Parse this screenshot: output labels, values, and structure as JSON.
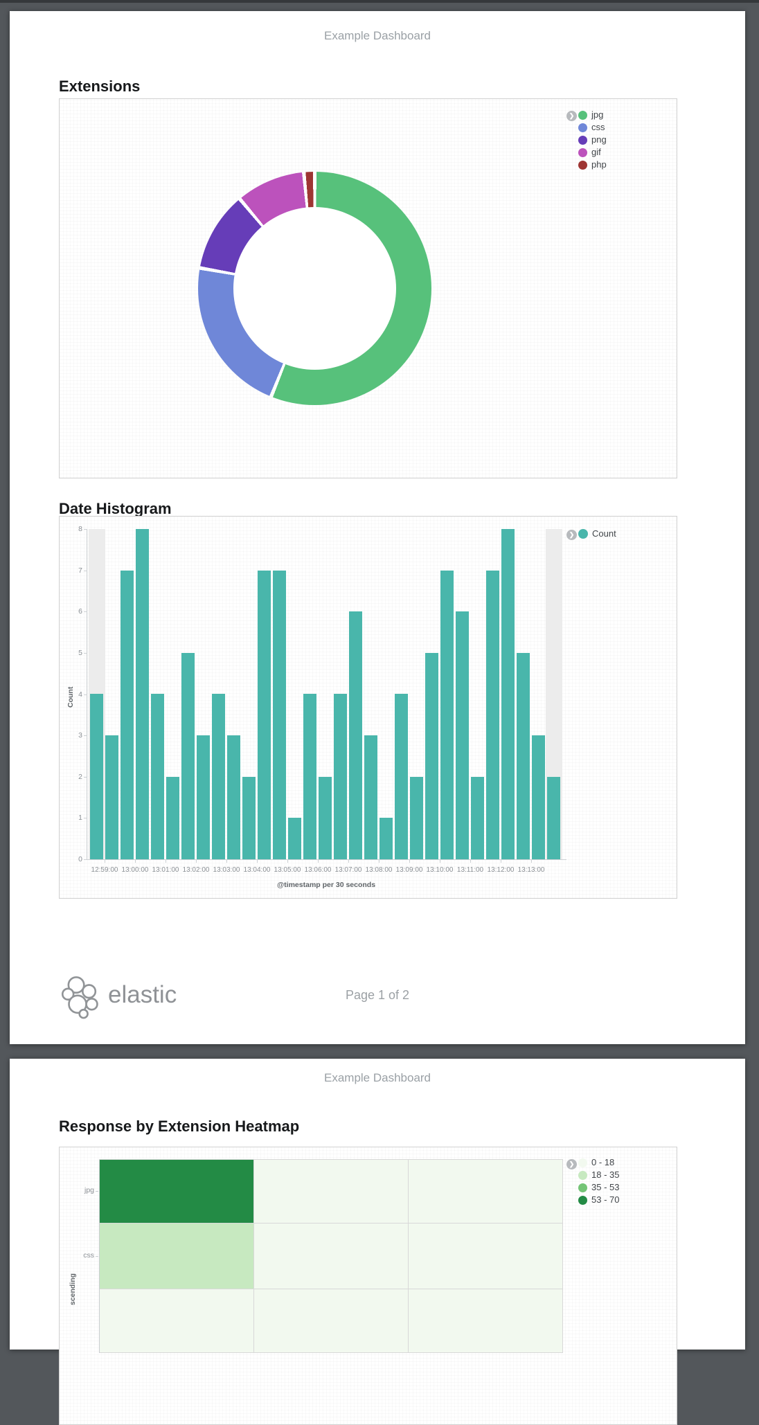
{
  "report": {
    "header_title": "Example Dashboard",
    "footer": {
      "brand": "elastic",
      "page_label": "Page 1 of 2"
    }
  },
  "sections": {
    "extensions": {
      "title": "Extensions"
    },
    "date_histogram": {
      "title": "Date Histogram"
    },
    "heatmap": {
      "title": "Response by Extension Heatmap"
    }
  },
  "chart_data": [
    {
      "type": "pie",
      "title": "Extensions",
      "donut": true,
      "legend_position": "top-right",
      "slices": [
        {
          "label": "jpg",
          "pct": 56.1,
          "color": "#57c17b"
        },
        {
          "label": "css",
          "pct": 21.7,
          "color": "#6f87d8"
        },
        {
          "label": "png",
          "pct": 11.1,
          "color": "#663db8"
        },
        {
          "label": "gif",
          "pct": 9.6,
          "color": "#bc52bc"
        },
        {
          "label": "php",
          "pct": 1.5,
          "color": "#9e3533"
        }
      ]
    },
    {
      "type": "bar",
      "title": "Date Histogram",
      "series_name": "Count",
      "color": "#49b6ab",
      "xlabel": "@timestamp per 30 seconds",
      "ylabel": "Count",
      "ylim": [
        0,
        8
      ],
      "x": [
        "12:58:30",
        "12:59:00",
        "12:59:30",
        "13:00:00",
        "13:00:30",
        "13:01:00",
        "13:01:30",
        "13:02:00",
        "13:02:30",
        "13:03:00",
        "13:03:30",
        "13:04:00",
        "13:04:30",
        "13:05:00",
        "13:05:30",
        "13:06:00",
        "13:06:30",
        "13:07:00",
        "13:07:30",
        "13:08:00",
        "13:08:30",
        "13:09:00",
        "13:09:30",
        "13:10:00",
        "13:10:30",
        "13:11:00",
        "13:11:30",
        "13:12:00",
        "13:12:30",
        "13:13:00",
        "13:13:30"
      ],
      "values": [
        4,
        3,
        7,
        8,
        4,
        2,
        5,
        3,
        4,
        3,
        2,
        7,
        7,
        1,
        4,
        2,
        4,
        6,
        3,
        1,
        4,
        2,
        5,
        7,
        6,
        2,
        7,
        8,
        5,
        3,
        2
      ],
      "x_tick_labels": [
        "12:59:00",
        "13:00:00",
        "13:01:00",
        "13:02:00",
        "13:03:00",
        "13:04:00",
        "13:05:00",
        "13:06:00",
        "13:07:00",
        "13:08:00",
        "13:09:00",
        "13:10:00",
        "13:11:00",
        "13:12:00",
        "13:13:00"
      ],
      "partial_bucket_indices": [
        0,
        30
      ]
    },
    {
      "type": "heatmap",
      "title": "Response by Extension Heatmap",
      "row_labels": [
        "jpg",
        "css",
        ""
      ],
      "y_axis_label_fragment": "scending",
      "legend": [
        {
          "label": "0 - 18",
          "color": "#f2f9ef"
        },
        {
          "label": "18 - 35",
          "color": "#c7e9c0"
        },
        {
          "label": "35 - 53",
          "color": "#74c476"
        },
        {
          "label": "53 - 70",
          "color": "#238b45"
        }
      ],
      "cells": [
        [
          "53 - 70",
          "0 - 18",
          "0 - 18"
        ],
        [
          "18 - 35",
          "0 - 18",
          "0 - 18"
        ],
        [
          "0 - 18",
          "0 - 18",
          "0 - 18"
        ]
      ]
    }
  ]
}
